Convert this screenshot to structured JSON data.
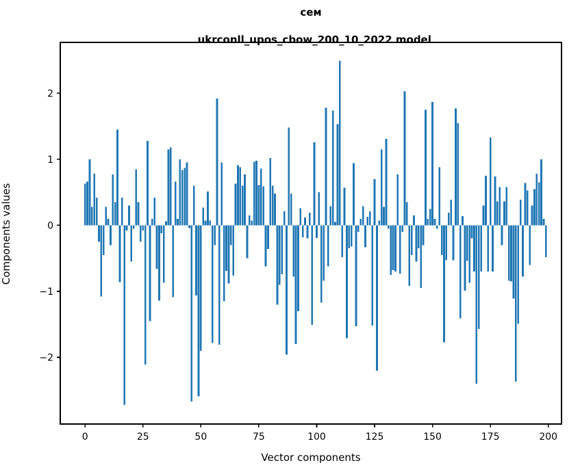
{
  "title": {
    "line1": "сем",
    "line2": "ukrconll_upos_cbow_200_10_2022 model"
  },
  "chart_data": {
    "type": "bar",
    "title": "сем\nukrconll_upos_cbow_200_10_2022 model",
    "xlabel": "Vector components",
    "ylabel": "Components values",
    "bar_color": "#1f77b4",
    "axis_color": "#000000",
    "background": "#ffffff",
    "grid": false,
    "legend": "none",
    "xlim": [
      -10.7,
      205.7
    ],
    "ylim": [
      -3.01,
      2.77
    ],
    "xticks": [
      0,
      25,
      50,
      75,
      100,
      125,
      150,
      175,
      200
    ],
    "yticks": [
      -2,
      -1,
      0,
      1,
      2
    ],
    "bar_width": 0.8,
    "x_start_index": 0,
    "values": [
      0.63,
      0.66,
      1.0,
      0.28,
      0.78,
      0.42,
      -0.25,
      -1.08,
      -0.45,
      0.28,
      0.1,
      -0.3,
      0.77,
      0.35,
      1.45,
      -0.86,
      0.42,
      -2.72,
      -0.08,
      0.3,
      -0.55,
      -0.05,
      0.85,
      0.35,
      -0.25,
      -0.08,
      -2.11,
      1.28,
      -1.45,
      0.1,
      0.42,
      -0.66,
      -1.14,
      -0.12,
      -0.87,
      0.06,
      1.15,
      1.18,
      -1.09,
      0.66,
      0.1,
      1.0,
      0.84,
      0.87,
      0.95,
      -0.04,
      -2.67,
      0.6,
      -1.06,
      -2.59,
      -1.9,
      0.27,
      0.07,
      0.51,
      0.07,
      -1.78,
      -0.3,
      1.92,
      -1.81,
      0.95,
      -1.15,
      -0.69,
      -0.88,
      -0.3,
      -0.76,
      0.63,
      0.91,
      0.88,
      0.6,
      0.77,
      -0.5,
      0.15,
      0.07,
      0.96,
      0.98,
      0.61,
      0.86,
      0.59,
      -0.62,
      -0.36,
      1.02,
      0.6,
      0.48,
      -1.2,
      -0.9,
      -0.74,
      0.21,
      -1.96,
      1.48,
      0.48,
      -0.78,
      -1.8,
      -1.3,
      0.26,
      -0.18,
      0.12,
      -0.2,
      0.19,
      -1.51,
      1.26,
      -0.19,
      0.5,
      -1.17,
      -0.84,
      1.78,
      -0.62,
      0.29,
      1.74,
      0.05,
      1.53,
      2.49,
      -0.48,
      0.57,
      -1.71,
      -0.35,
      -0.32,
      0.94,
      -1.53,
      -0.1,
      0.1,
      0.29,
      -0.33,
      0.13,
      0.21,
      -1.52,
      0.7,
      -2.2,
      0.07,
      1.15,
      0.28,
      1.31,
      -0.05,
      -0.75,
      -0.68,
      -0.7,
      0.77,
      -0.73,
      -0.1,
      2.03,
      0.35,
      -0.92,
      -0.45,
      0.15,
      -0.55,
      -0.35,
      -0.95,
      -0.3,
      1.75,
      0.1,
      0.25,
      1.87,
      0.1,
      -0.05,
      0.88,
      -0.45,
      -1.77,
      -0.53,
      0.19,
      0.39,
      -0.53,
      1.77,
      1.55,
      -1.41,
      0.14,
      -0.99,
      -0.54,
      -0.87,
      -0.2,
      -0.7,
      -2.4,
      -1.57,
      -0.7,
      0.3,
      0.75,
      -0.7,
      1.33,
      -0.7,
      0.74,
      0.36,
      0.58,
      -0.3,
      0.36,
      0.58,
      -0.84,
      -0.85,
      -1.11,
      -2.37,
      -1.49,
      0.39,
      -0.78,
      0.64,
      0.53,
      -0.6,
      0.3,
      0.55,
      0.78,
      0.65,
      1.0,
      0.1,
      -0.48
    ]
  }
}
